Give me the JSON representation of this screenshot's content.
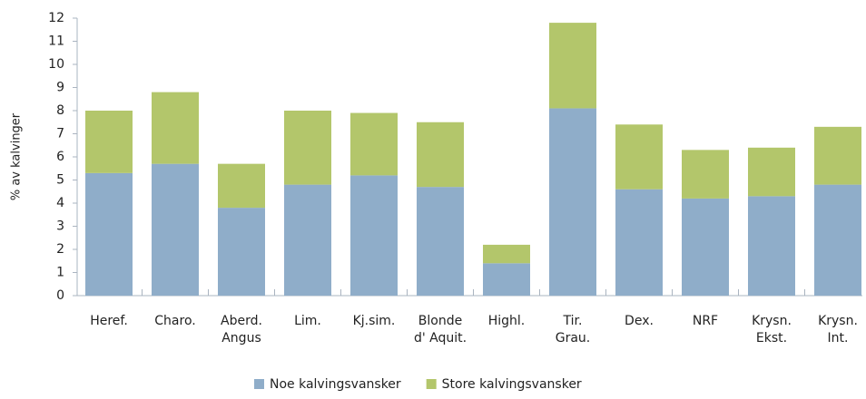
{
  "chart_data": {
    "type": "stacked_bar",
    "ylabel": "% av kalvinger",
    "categories": [
      "Heref.",
      "Charo.",
      "Aberd.\nAngus",
      "Lim.",
      "Kj.sim.",
      "Blonde\nd' Aquit.",
      "Highl.",
      "Tir.\nGrau.",
      "Dex.",
      "NRF",
      "Krysn.\nEkst.",
      "Krysn.\nInt."
    ],
    "series": [
      {
        "name": "Noe kalvingsvansker",
        "color": "#8fadc9",
        "values": [
          5.3,
          5.7,
          3.8,
          4.8,
          5.2,
          4.7,
          1.4,
          8.1,
          4.6,
          4.2,
          4.3,
          4.8
        ]
      },
      {
        "name": "Store kalvingsvansker",
        "color": "#b3c66b",
        "values": [
          2.7,
          3.1,
          1.9,
          3.2,
          2.7,
          2.8,
          0.8,
          3.7,
          2.8,
          2.1,
          2.1,
          2.5
        ]
      }
    ],
    "ylim": [
      0,
      12
    ],
    "yticks": [
      0,
      1,
      2,
      3,
      4,
      5,
      6,
      7,
      8,
      9,
      10,
      11,
      12
    ],
    "legend": "bottom"
  }
}
